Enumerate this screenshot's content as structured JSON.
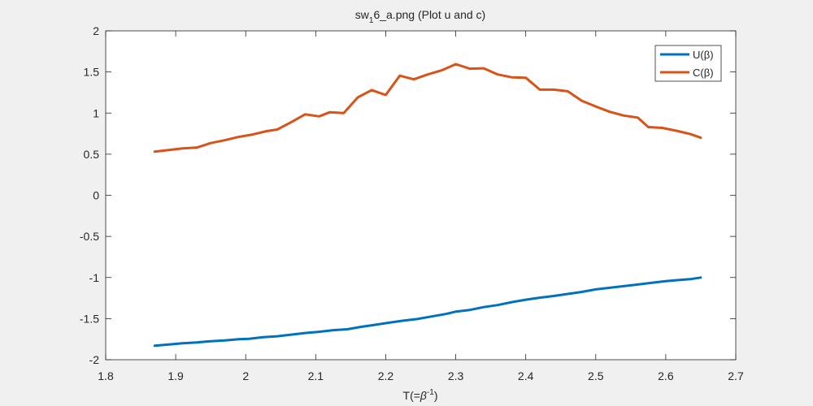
{
  "figure": {
    "background": "#f0f0f0",
    "axes_background": "#ffffff"
  },
  "chart_data": {
    "type": "line",
    "title": "sw₁6_a.png (Plot u and c)",
    "title_parts": {
      "prefix": "sw",
      "subscript": "1",
      "suffix": "6_a.png (Plot u and c)"
    },
    "xlabel": "T(=β⁻¹)",
    "xlabel_parts": {
      "prefix": "T(=",
      "beta": "β",
      "superscript": "-1",
      "suffix": ")"
    },
    "ylabel": "",
    "xlim": [
      1.8,
      2.7
    ],
    "ylim": [
      -2,
      2
    ],
    "xticks": [
      1.8,
      1.9,
      2,
      2.1,
      2.2,
      2.3,
      2.4,
      2.5,
      2.6,
      2.7
    ],
    "xtick_labels": [
      "1.8",
      "1.9",
      "2",
      "2.1",
      "2.2",
      "2.3",
      "2.4",
      "2.5",
      "2.6",
      "2.7"
    ],
    "yticks": [
      -2,
      -1.5,
      -1,
      -0.5,
      0,
      0.5,
      1,
      1.5,
      2
    ],
    "ytick_labels": [
      "-2",
      "-1.5",
      "-1",
      "-0.5",
      "0",
      "0.5",
      "1",
      "1.5",
      "2"
    ],
    "grid": false,
    "legend_position": "top-right",
    "series": [
      {
        "name": "U(β)",
        "color": "#0072bd",
        "points": [
          [
            1.87,
            -1.83
          ],
          [
            1.89,
            -1.815
          ],
          [
            1.91,
            -1.8
          ],
          [
            1.93,
            -1.79
          ],
          [
            1.95,
            -1.775
          ],
          [
            1.97,
            -1.765
          ],
          [
            1.99,
            -1.75
          ],
          [
            2.005,
            -1.745
          ],
          [
            2.025,
            -1.725
          ],
          [
            2.045,
            -1.715
          ],
          [
            2.065,
            -1.695
          ],
          [
            2.085,
            -1.675
          ],
          [
            2.105,
            -1.66
          ],
          [
            2.125,
            -1.64
          ],
          [
            2.145,
            -1.63
          ],
          [
            2.165,
            -1.6
          ],
          [
            2.185,
            -1.575
          ],
          [
            2.205,
            -1.55
          ],
          [
            2.225,
            -1.525
          ],
          [
            2.245,
            -1.505
          ],
          [
            2.265,
            -1.475
          ],
          [
            2.285,
            -1.445
          ],
          [
            2.3,
            -1.415
          ],
          [
            2.32,
            -1.395
          ],
          [
            2.34,
            -1.36
          ],
          [
            2.36,
            -1.335
          ],
          [
            2.38,
            -1.3
          ],
          [
            2.4,
            -1.27
          ],
          [
            2.42,
            -1.245
          ],
          [
            2.44,
            -1.225
          ],
          [
            2.46,
            -1.2
          ],
          [
            2.48,
            -1.175
          ],
          [
            2.5,
            -1.145
          ],
          [
            2.52,
            -1.125
          ],
          [
            2.54,
            -1.105
          ],
          [
            2.56,
            -1.085
          ],
          [
            2.58,
            -1.065
          ],
          [
            2.6,
            -1.045
          ],
          [
            2.62,
            -1.03
          ],
          [
            2.635,
            -1.02
          ],
          [
            2.65,
            -1.0
          ]
        ]
      },
      {
        "name": "C(β)",
        "color": "#d95319",
        "points": [
          [
            1.87,
            0.53
          ],
          [
            1.89,
            0.55
          ],
          [
            1.91,
            0.57
          ],
          [
            1.93,
            0.58
          ],
          [
            1.95,
            0.635
          ],
          [
            1.97,
            0.67
          ],
          [
            1.99,
            0.71
          ],
          [
            2.01,
            0.74
          ],
          [
            2.03,
            0.78
          ],
          [
            2.045,
            0.8
          ],
          [
            2.065,
            0.89
          ],
          [
            2.085,
            0.985
          ],
          [
            2.105,
            0.96
          ],
          [
            2.12,
            1.01
          ],
          [
            2.14,
            1.0
          ],
          [
            2.16,
            1.19
          ],
          [
            2.18,
            1.28
          ],
          [
            2.2,
            1.22
          ],
          [
            2.22,
            1.455
          ],
          [
            2.24,
            1.41
          ],
          [
            2.26,
            1.47
          ],
          [
            2.28,
            1.52
          ],
          [
            2.3,
            1.595
          ],
          [
            2.32,
            1.54
          ],
          [
            2.34,
            1.545
          ],
          [
            2.36,
            1.47
          ],
          [
            2.38,
            1.435
          ],
          [
            2.4,
            1.43
          ],
          [
            2.42,
            1.285
          ],
          [
            2.44,
            1.285
          ],
          [
            2.46,
            1.265
          ],
          [
            2.48,
            1.15
          ],
          [
            2.5,
            1.08
          ],
          [
            2.52,
            1.015
          ],
          [
            2.54,
            0.97
          ],
          [
            2.56,
            0.945
          ],
          [
            2.575,
            0.83
          ],
          [
            2.595,
            0.82
          ],
          [
            2.615,
            0.785
          ],
          [
            2.635,
            0.745
          ],
          [
            2.65,
            0.7
          ]
        ]
      }
    ]
  }
}
